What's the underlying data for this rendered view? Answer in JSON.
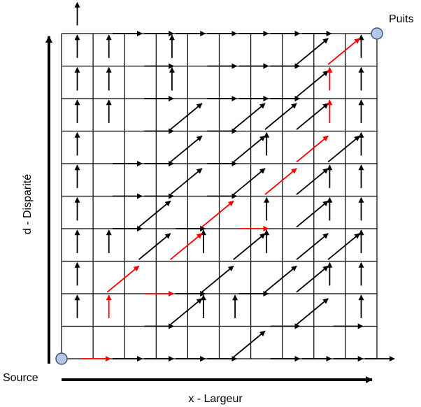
{
  "labels": {
    "source": "Source",
    "sink": "Puits",
    "x_axis": "x - Largeur",
    "y_axis": "d - Disparité"
  },
  "grid": {
    "cols": 10,
    "rows": 10
  },
  "colors": {
    "arrow": "#000000",
    "path": "#ff0000",
    "node_fill": "#b4c7e7",
    "node_stroke": "#41557a",
    "grid_line": "#000000"
  },
  "arrows": [
    "U",
    "R",
    "R",
    "R",
    "R",
    "R",
    "R",
    "R",
    "-",
    "-",
    "U",
    "U",
    "R",
    "U",
    "R",
    "R",
    "R",
    "D",
    "U",
    "U",
    "U",
    "U",
    "R",
    "U",
    "R",
    "R",
    "R",
    "D",
    "U",
    "U",
    "U",
    "U",
    "R",
    "D",
    "R",
    "D",
    "D",
    "D",
    "D",
    "U",
    "U",
    "R",
    "R",
    "D",
    "R",
    "D",
    "U",
    "U",
    "D",
    "U",
    "U",
    "R",
    "R",
    "D",
    "R",
    "D",
    "R",
    "D",
    "U",
    "U",
    "U",
    "R",
    "D",
    "R",
    "U",
    "D",
    "U",
    "D",
    "U",
    "U",
    "U",
    "U",
    "D",
    "U",
    "U",
    "D",
    "U",
    "D",
    "D",
    "U",
    "U",
    "U",
    "R",
    "R",
    "D",
    "R",
    "D",
    "D",
    "U",
    "U",
    "U",
    "U",
    "R",
    "D",
    "U",
    "U",
    "R",
    "D",
    "R",
    "U",
    "R",
    "R",
    "R",
    "R",
    "R",
    "D",
    "R",
    "R",
    "R",
    "R"
  ],
  "path": [
    [
      0,
      10,
      "R"
    ],
    [
      1,
      9,
      "U"
    ],
    [
      1,
      8,
      "D"
    ],
    [
      2,
      8,
      "R"
    ],
    [
      3,
      7,
      "D"
    ],
    [
      4,
      6,
      "D"
    ],
    [
      5,
      6,
      "R"
    ],
    [
      6,
      5,
      "D"
    ],
    [
      7,
      4,
      "D"
    ],
    [
      8,
      3,
      "U"
    ],
    [
      8,
      2,
      "U"
    ],
    [
      8,
      1,
      "D"
    ]
  ]
}
